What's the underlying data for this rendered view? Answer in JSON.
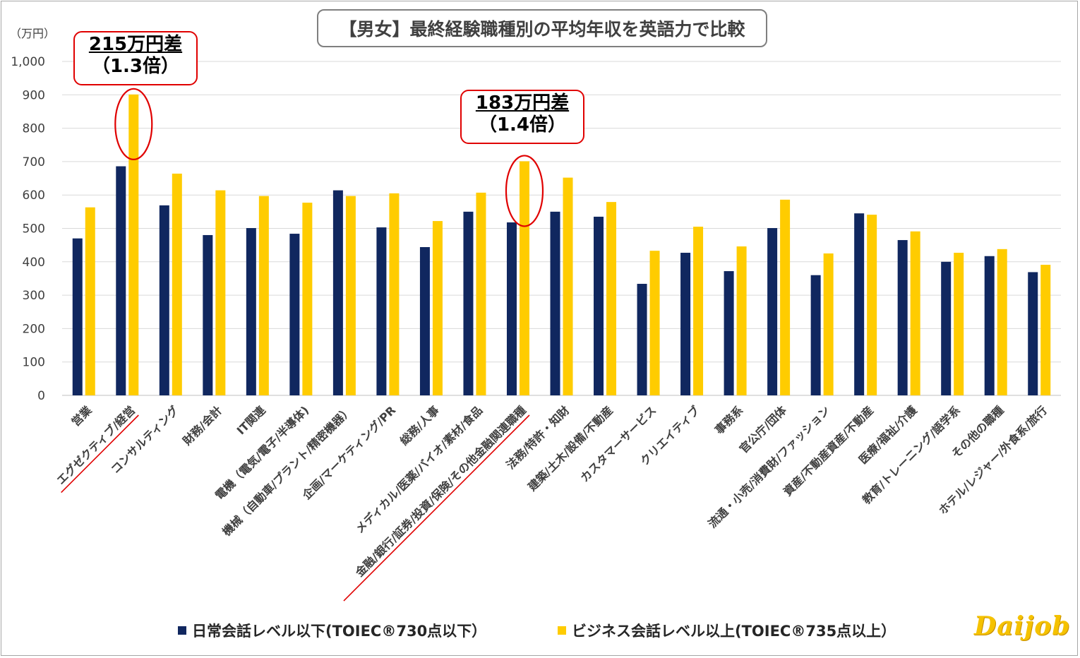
{
  "title": "【男女】最終経験職種別の平均年収を英語力で比較",
  "unit_label": "（万円）",
  "colors": {
    "series_a": "#10275f",
    "series_b": "#ffcc00",
    "highlight": "#e00000",
    "grid": "#d9d9d9"
  },
  "callouts": [
    {
      "line1": "215万円差",
      "line2": "（1.3倍）"
    },
    {
      "line1": "183万円差",
      "line2": "（1.4倍）"
    }
  ],
  "legend": [
    {
      "label": "日常会話レベル以下(TOIEC®730点以下）"
    },
    {
      "label": "ビジネス会話レベル以上(TOIEC®735点以上）"
    }
  ],
  "logo": "Daijob",
  "chart_data": {
    "type": "bar",
    "title": "【男女】最終経験職種別の平均年収を英語力で比較",
    "ylabel": "（万円）",
    "ylim": [
      0,
      1000
    ],
    "yticks": [
      "0",
      "100",
      "200",
      "300",
      "400",
      "500",
      "600",
      "700",
      "800",
      "900",
      "1,000"
    ],
    "grid": true,
    "legend_position": "bottom",
    "categories": [
      "営業",
      "エグゼクティブ/経営",
      "コンサルティング",
      "財務/会計",
      "IT関連",
      "電機（電気/電子/半導体)",
      "機械（自動車/プラント/精密機器）",
      "企画/マーケティング/PR",
      "総務/人事",
      "メディカル/医薬/バイオ/素材/食品",
      "金融/銀行/証券/投資/保険/その他金融関連職種",
      "法務/特許・知財",
      "建築/土木/設備/不動産",
      "カスタマーサービス",
      "クリエイティブ",
      "事務系",
      "官公庁/団体",
      "流通・小売/消費財/ファッション",
      "資産/不動産資産/不動産",
      "医療/福祉/介護",
      "教育/トレーニング/語学系",
      "その他の職種",
      "ホテル/レジャー/外食系/旅行"
    ],
    "highlighted_categories": [
      1,
      10
    ],
    "series": [
      {
        "name": "日常会話レベル以下(TOIEC®730点以下）",
        "values": [
          470,
          686,
          569,
          480,
          501,
          484,
          614,
          503,
          444,
          550,
          518,
          550,
          535,
          334,
          427,
          372,
          501,
          360,
          545,
          465,
          400,
          417,
          369
        ]
      },
      {
        "name": "ビジネス会話レベル以上(TOIEC®735点以上）",
        "values": [
          563,
          901,
          664,
          614,
          597,
          577,
          597,
          605,
          522,
          607,
          701,
          652,
          579,
          433,
          505,
          446,
          586,
          425,
          541,
          491,
          427,
          438,
          391
        ]
      }
    ]
  }
}
